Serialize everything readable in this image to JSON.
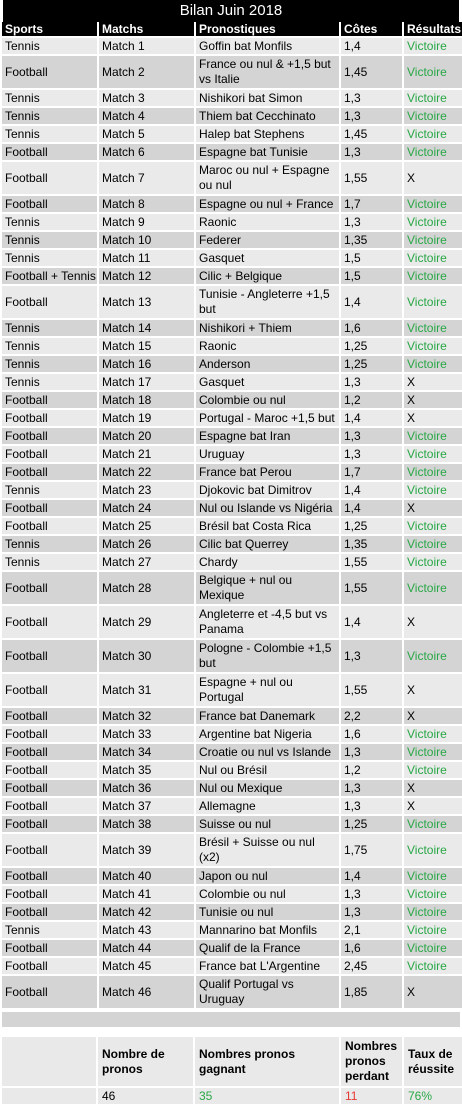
{
  "title": "Bilan Juin 2018",
  "headers": [
    "Sports",
    "Matchs",
    "Pronostiques",
    "Côtes",
    "Résultats"
  ],
  "rows": [
    {
      "sport": "Tennis",
      "match": "Match 1",
      "prono": "Goffin bat Monfils",
      "cote": "1,4",
      "result": "Victoire"
    },
    {
      "sport": "Football",
      "match": "Match 2",
      "prono": "France ou nul & +1,5 but vs Italie",
      "cote": "1,45",
      "result": "Victoire"
    },
    {
      "sport": "Tennis",
      "match": "Match 3",
      "prono": "Nishikori bat Simon",
      "cote": "1,3",
      "result": "Victoire"
    },
    {
      "sport": "Tennis",
      "match": "Match 4",
      "prono": "Thiem bat Cecchinato",
      "cote": "1,3",
      "result": "Victoire"
    },
    {
      "sport": "Tennis",
      "match": "Match 5",
      "prono": "Halep bat Stephens",
      "cote": "1,45",
      "result": "Victoire"
    },
    {
      "sport": "Football",
      "match": "Match 6",
      "prono": "Espagne bat Tunisie",
      "cote": "1,3",
      "result": "Victoire"
    },
    {
      "sport": "Football",
      "match": "Match 7",
      "prono": "Maroc ou nul + Espagne ou nul",
      "cote": "1,55",
      "result": "X"
    },
    {
      "sport": "Football",
      "match": "Match 8",
      "prono": "Espagne ou nul + France",
      "cote": "1,7",
      "result": "Victoire"
    },
    {
      "sport": "Tennis",
      "match": "Match 9",
      "prono": "Raonic",
      "cote": "1,3",
      "result": "Victoire"
    },
    {
      "sport": "Tennis",
      "match": "Match 10",
      "prono": "Federer",
      "cote": "1,35",
      "result": "Victoire"
    },
    {
      "sport": "Tennis",
      "match": "Match 11",
      "prono": "Gasquet",
      "cote": "1,5",
      "result": "Victoire"
    },
    {
      "sport": "Football + Tennis",
      "match": "Match 12",
      "prono": "Cilic + Belgique",
      "cote": "1,5",
      "result": "Victoire"
    },
    {
      "sport": "Football",
      "match": "Match 13",
      "prono": "Tunisie - Angleterre +1,5 but",
      "cote": "1,4",
      "result": "Victoire"
    },
    {
      "sport": "Tennis",
      "match": "Match 14",
      "prono": "Nishikori + Thiem",
      "cote": "1,6",
      "result": "Victoire"
    },
    {
      "sport": "Tennis",
      "match": "Match 15",
      "prono": "Raonic",
      "cote": "1,25",
      "result": "Victoire"
    },
    {
      "sport": "Tennis",
      "match": "Match 16",
      "prono": "Anderson",
      "cote": "1,25",
      "result": "Victoire"
    },
    {
      "sport": "Tennis",
      "match": "Match 17",
      "prono": "Gasquet",
      "cote": "1,3",
      "result": "X"
    },
    {
      "sport": "Football",
      "match": "Match 18",
      "prono": "Colombie ou nul",
      "cote": "1,2",
      "result": "X"
    },
    {
      "sport": "Football",
      "match": "Match 19",
      "prono": "Portugal - Maroc +1,5 but",
      "cote": "1,4",
      "result": "X"
    },
    {
      "sport": "Football",
      "match": "Match 20",
      "prono": "Espagne bat Iran",
      "cote": "1,3",
      "result": "Victoire"
    },
    {
      "sport": "Football",
      "match": "Match 21",
      "prono": "Uruguay",
      "cote": "1,3",
      "result": "Victoire"
    },
    {
      "sport": "Football",
      "match": "Match 22",
      "prono": "France bat Perou",
      "cote": "1,7",
      "result": "Victoire"
    },
    {
      "sport": "Tennis",
      "match": "Match 23",
      "prono": "Djokovic bat Dimitrov",
      "cote": "1,4",
      "result": "Victoire"
    },
    {
      "sport": "Football",
      "match": "Match 24",
      "prono": "Nul ou Islande vs Nigéria",
      "cote": "1,4",
      "result": "X"
    },
    {
      "sport": "Football",
      "match": "Match 25",
      "prono": "Brésil bat Costa Rica",
      "cote": "1,25",
      "result": "Victoire"
    },
    {
      "sport": "Tennis",
      "match": "Match 26",
      "prono": "Cilic bat Querrey",
      "cote": "1,35",
      "result": "Victoire"
    },
    {
      "sport": "Tennis",
      "match": "Match 27",
      "prono": "Chardy",
      "cote": "1,55",
      "result": "Victoire"
    },
    {
      "sport": "Football",
      "match": "Match 28",
      "prono": "Belgique + nul ou Mexique",
      "cote": "1,55",
      "result": "Victoire"
    },
    {
      "sport": "Football",
      "match": "Match 29",
      "prono": "Angleterre et -4,5 but vs Panama",
      "cote": "1,4",
      "result": "X"
    },
    {
      "sport": "Football",
      "match": "Match 30",
      "prono": "Pologne - Colombie +1,5 but",
      "cote": "1,3",
      "result": "Victoire"
    },
    {
      "sport": "Football",
      "match": "Match 31",
      "prono": "Espagne + nul ou Portugal",
      "cote": "1,55",
      "result": "X"
    },
    {
      "sport": "Football",
      "match": "Match 32",
      "prono": "France bat Danemark",
      "cote": "2,2",
      "result": "X"
    },
    {
      "sport": "Football",
      "match": "Match 33",
      "prono": "Argentine bat Nigeria",
      "cote": "1,6",
      "result": "Victoire"
    },
    {
      "sport": "Football",
      "match": "Match 34",
      "prono": "Croatie ou nul vs Islande",
      "cote": "1,3",
      "result": "Victoire"
    },
    {
      "sport": "Football",
      "match": "Match 35",
      "prono": "Nul ou Brésil",
      "cote": "1,2",
      "result": "Victoire"
    },
    {
      "sport": "Football",
      "match": "Match 36",
      "prono": "Nul ou Mexique",
      "cote": "1,3",
      "result": "X"
    },
    {
      "sport": "Football",
      "match": "Match 37",
      "prono": "Allemagne",
      "cote": "1,3",
      "result": "X"
    },
    {
      "sport": "Football",
      "match": "Match 38",
      "prono": "Suisse ou nul",
      "cote": "1,25",
      "result": "Victoire"
    },
    {
      "sport": "Football",
      "match": "Match 39",
      "prono": "Brésil + Suisse ou nul (x2)",
      "cote": "1,75",
      "result": "Victoire"
    },
    {
      "sport": "Football",
      "match": "Match 40",
      "prono": "Japon ou nul",
      "cote": "1,4",
      "result": "Victoire"
    },
    {
      "sport": "Football",
      "match": "Match 41",
      "prono": "Colombie ou nul",
      "cote": "1,3",
      "result": "Victoire"
    },
    {
      "sport": "Football",
      "match": "Match 42",
      "prono": "Tunisie ou nul",
      "cote": "1,3",
      "result": "Victoire"
    },
    {
      "sport": "Tennis",
      "match": "Match 43",
      "prono": "Mannarino bat Monfils",
      "cote": "2,1",
      "result": "Victoire"
    },
    {
      "sport": "Football",
      "match": "Match 44",
      "prono": "Qualif de la France",
      "cote": "1,6",
      "result": "Victoire"
    },
    {
      "sport": "Football",
      "match": "Match 45",
      "prono": "France bat L'Argentine",
      "cote": "2,45",
      "result": "Victoire"
    },
    {
      "sport": "Football",
      "match": "Match 46",
      "prono": "Qualif Portugal vs Uruguay",
      "cote": "1,85",
      "result": "X"
    }
  ],
  "summary": {
    "headers": [
      "Nombre de pronos",
      "Nombres pronos gagnant",
      "Nombres pronos perdant",
      "Taux de réussite"
    ],
    "values": {
      "total": "46",
      "won": "35",
      "lost": "11",
      "rate": "76%"
    }
  },
  "colors": {
    "win": "#28a745",
    "lose": "#e53935",
    "header_bg": "#000000"
  }
}
